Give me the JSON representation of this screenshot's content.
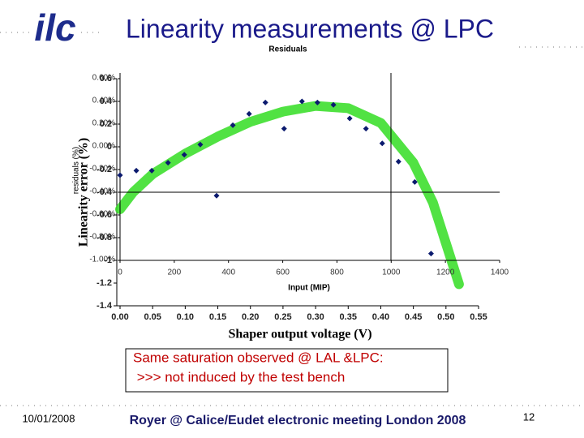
{
  "logo": "ilc",
  "title": "Linearity measurements @ LPC",
  "note": [
    "Same saturation observed @ LAL &LPC:",
    " >>> not induced by the test bench"
  ],
  "footer": {
    "date": "10/01/2008",
    "text": "Royer @ Calice/Eudet electronic meeting London 2008",
    "page": "12"
  },
  "chart_data": [
    {
      "type": "scatter",
      "title": "Residuals",
      "x_label": "Input (MIP)",
      "y_label": "residuals (%)",
      "color": "#0b1a6e",
      "x": [
        0,
        60,
        117,
        177,
        237,
        296,
        356,
        416,
        476,
        536,
        605,
        671,
        728,
        787,
        847,
        907,
        967,
        1027,
        1087,
        1147
      ],
      "values": [
        -0.25,
        -0.21,
        -0.21,
        -0.14,
        -0.07,
        0.02,
        -0.43,
        0.19,
        0.29,
        0.39,
        0.16,
        0.4,
        0.39,
        0.37,
        0.25,
        0.16,
        0.03,
        -0.13,
        -0.31,
        -0.94
      ],
      "xlim": [
        0,
        1400
      ],
      "xticks": [
        0,
        200,
        400,
        600,
        800,
        1000,
        1200,
        1400
      ],
      "ylim": [
        -1.0,
        0.6
      ],
      "yticks": [
        {
          "value": 0.6,
          "label": "0.60%"
        },
        {
          "value": 0.4,
          "label": "0.40%"
        },
        {
          "value": 0.2,
          "label": "0.20%"
        },
        {
          "value": 0,
          "label": "0.00%"
        },
        {
          "value": -0.2,
          "label": "-0.20%"
        },
        {
          "value": -0.4,
          "label": "-0.40%"
        },
        {
          "value": -0.6,
          "label": "-0.60%"
        },
        {
          "value": -0.8,
          "label": "-0.80%"
        },
        {
          "value": -1.0,
          "label": "-1.00%"
        }
      ]
    },
    {
      "type": "line",
      "x_label": "Shaper output voltage (V)",
      "y_label": "Linearity error (%)",
      "color": "#33dd22",
      "x": [
        0,
        0.02,
        0.05,
        0.1,
        0.15,
        0.2,
        0.25,
        0.3,
        0.35,
        0.4,
        0.45,
        0.48,
        0.5,
        0.52
      ],
      "values": [
        -0.55,
        -0.4,
        -0.24,
        -0.06,
        0.09,
        0.22,
        0.31,
        0.36,
        0.34,
        0.21,
        -0.14,
        -0.49,
        -0.85,
        -1.21
      ],
      "xlim": [
        0,
        0.55
      ],
      "xticks": [
        {
          "value": 0,
          "label": "0.00"
        },
        {
          "value": 0.05,
          "label": "0.05"
        },
        {
          "value": 0.1,
          "label": "0.10"
        },
        {
          "value": 0.15,
          "label": "0.15"
        },
        {
          "value": 0.2,
          "label": "0.20"
        },
        {
          "value": 0.25,
          "label": "0.25"
        },
        {
          "value": 0.3,
          "label": "0.30"
        },
        {
          "value": 0.35,
          "label": "0.35"
        },
        {
          "value": 0.4,
          "label": "0.40"
        },
        {
          "value": 0.45,
          "label": "0.45"
        },
        {
          "value": 0.5,
          "label": "0.50"
        },
        {
          "value": 0.55,
          "label": "0.55"
        }
      ],
      "ylim": [
        -1.4,
        0.6
      ],
      "yticks": [
        0.6,
        0.4,
        0.2,
        0,
        -0.2,
        -0.4,
        -0.6,
        -0.8,
        -1.0,
        -1.2,
        -1.4
      ]
    }
  ]
}
